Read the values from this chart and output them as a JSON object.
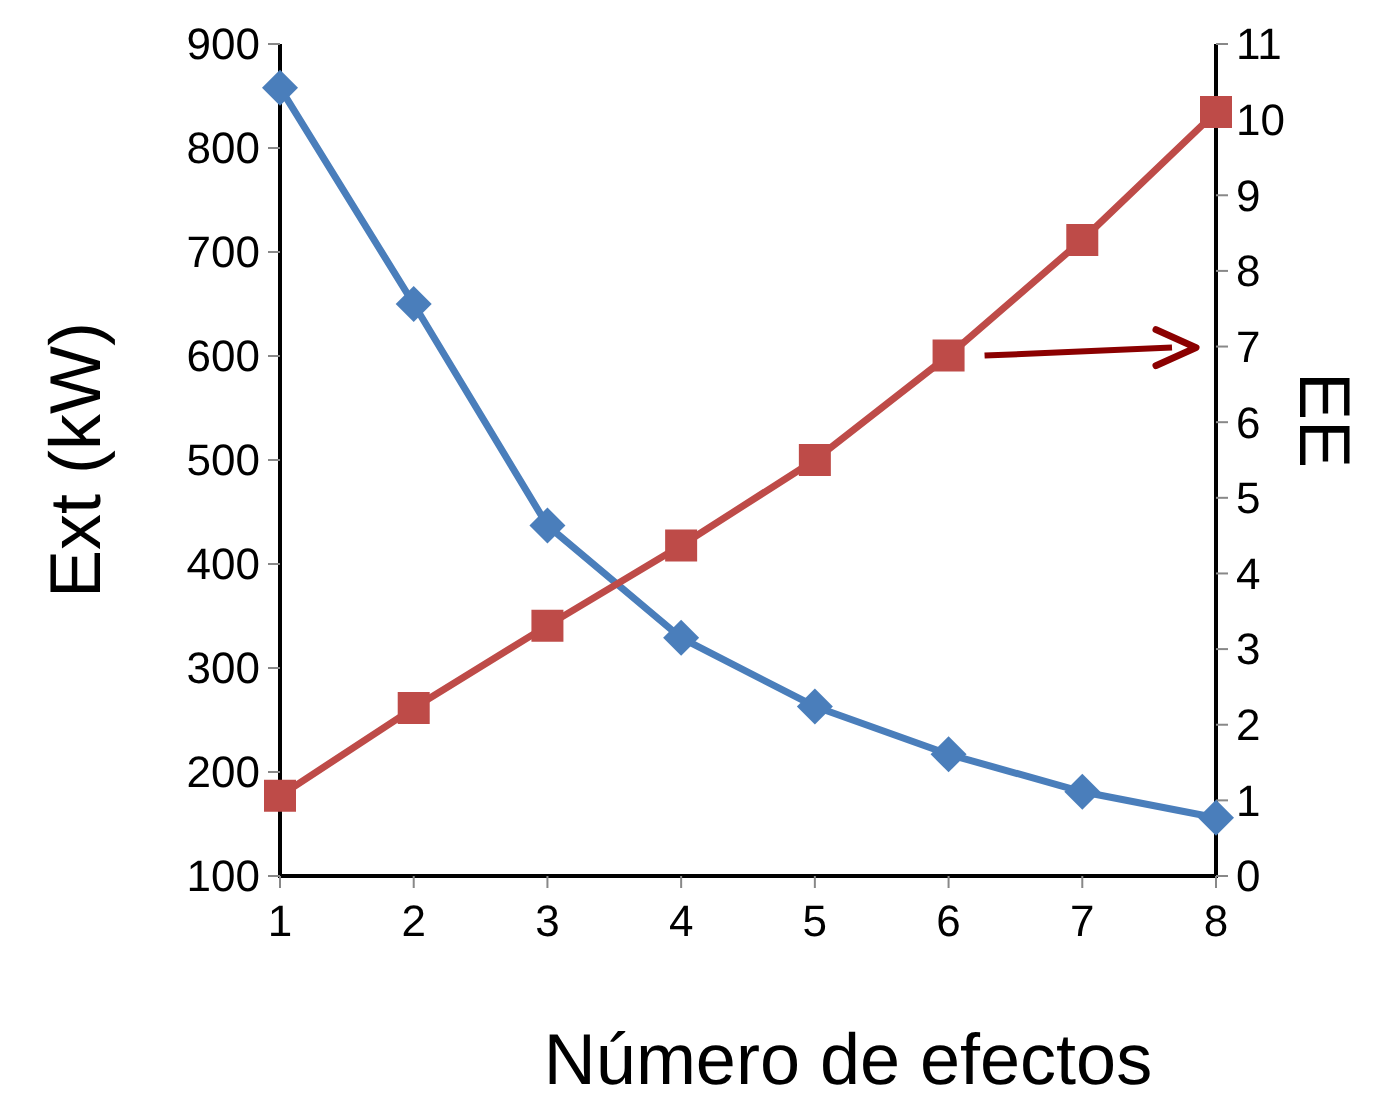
{
  "chart_data": {
    "type": "line",
    "xlabel": "Número de efectos",
    "ylabel": "Ext (kW)",
    "y2label": "EE",
    "x": [
      1,
      2,
      3,
      4,
      5,
      6,
      7,
      8
    ],
    "xlim": [
      1,
      8
    ],
    "xticks": [
      1,
      2,
      3,
      4,
      5,
      6,
      7,
      8
    ],
    "ylim": [
      100,
      900
    ],
    "yticks": [
      100,
      200,
      300,
      400,
      500,
      600,
      700,
      800,
      900
    ],
    "y2lim": [
      0,
      11
    ],
    "y2ticks": [
      0,
      1,
      2,
      3,
      4,
      5,
      6,
      7,
      8,
      9,
      10,
      11
    ],
    "grid": false,
    "series": [
      {
        "color": "#4a7ebb",
        "marker": "diamond",
        "values": [
          858,
          650,
          437,
          329,
          263,
          217,
          181,
          156
        ]
      },
      {
        "color": "#be4b48",
        "marker": "square",
        "axis": "y2",
        "values": [
          1.06,
          2.22,
          3.31,
          4.37,
          5.5,
          6.88,
          8.41,
          10.1
        ]
      }
    ]
  }
}
